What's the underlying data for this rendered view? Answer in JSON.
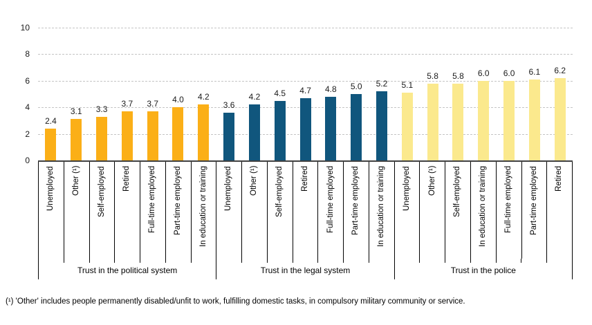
{
  "chart_data": {
    "type": "bar",
    "title": "",
    "xlabel": "",
    "ylabel": "",
    "ylim": [
      0,
      10
    ],
    "yticks": [
      0,
      2,
      4,
      6,
      8,
      10
    ],
    "grid": "horizontal-dashed",
    "legend": "none",
    "groups": [
      {
        "label": "Trust in the political system",
        "color": "#FBAF17",
        "categories": [
          "Unemployed",
          "Other (¹)",
          "Self-employed",
          "Retired",
          "Full-time employed",
          "Part-time employed",
          "In education or training"
        ],
        "values": [
          2.4,
          3.1,
          3.3,
          3.7,
          3.7,
          4.0,
          4.2
        ]
      },
      {
        "label": "Trust in the legal system",
        "color": "#10567D",
        "categories": [
          "Unemployed",
          "Other (¹)",
          "Self-employed",
          "Retired",
          "Full-time employed",
          "Part-time employed",
          "In education or training"
        ],
        "values": [
          3.6,
          4.2,
          4.5,
          4.7,
          4.8,
          5.0,
          5.2
        ]
      },
      {
        "label": "Trust in the police",
        "color": "#FBE98D",
        "categories": [
          "Unemployed",
          "Other (¹)",
          "Self-employed",
          "In education or training",
          "Full-time employed",
          "Part-time employed",
          "Retired"
        ],
        "values": [
          5.1,
          5.8,
          5.8,
          6.0,
          6.0,
          6.1,
          6.2
        ]
      }
    ],
    "axis_color": "#404040",
    "gridline_color": "#c4c4c4",
    "value_label_color": "#1a1a1a"
  },
  "footnote": "(¹) 'Other' includes people permanently disabled/unfit to work, fulfilling domestic tasks, in compulsory military community or service."
}
